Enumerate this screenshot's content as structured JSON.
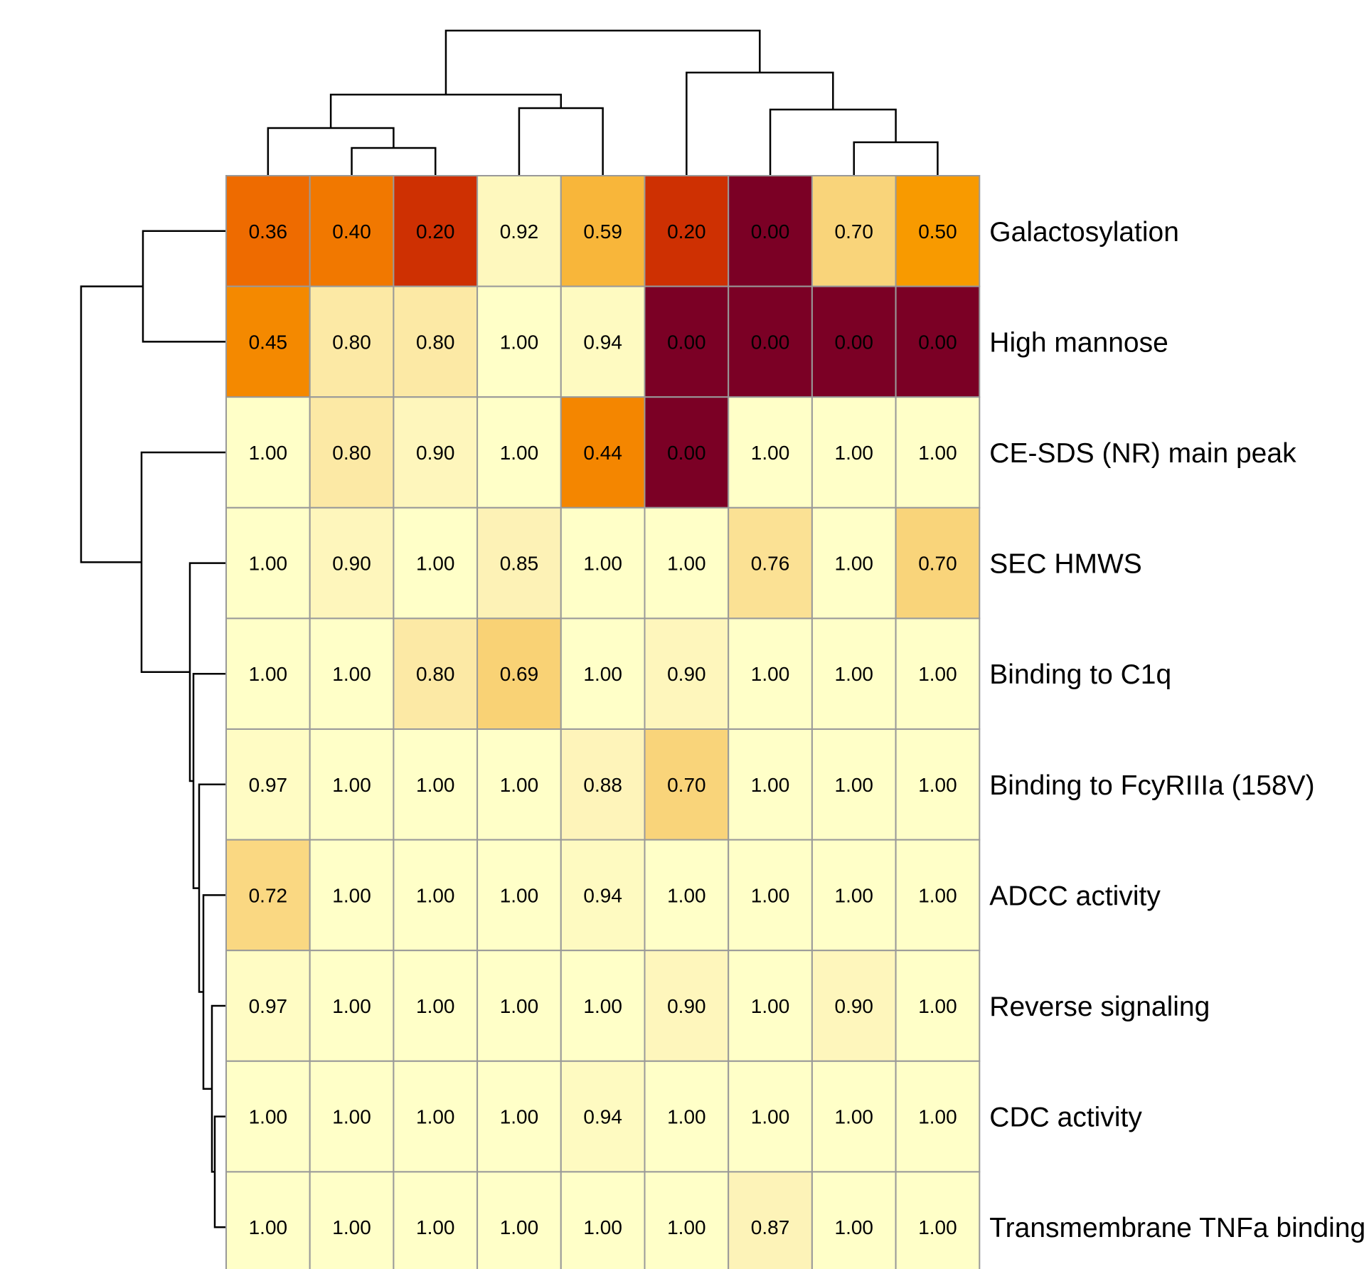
{
  "chart_data": {
    "type": "heatmap",
    "title": "",
    "rows": [
      "Galactosylation",
      "High mannose",
      "CE-SDS (NR) main peak",
      "SEC HMWS",
      "Binding to C1q",
      "Binding to FcyRIIIa (158V)",
      "ADCC activity",
      "Reverse signaling",
      "CDC activity",
      "Transmembrane TNFa binding"
    ],
    "columns": 9,
    "values": [
      [
        0.36,
        0.4,
        0.2,
        0.92,
        0.59,
        0.2,
        0.0,
        0.7,
        0.5
      ],
      [
        0.45,
        0.8,
        0.8,
        1.0,
        0.94,
        0.0,
        0.0,
        0.0,
        0.0
      ],
      [
        1.0,
        0.8,
        0.9,
        1.0,
        0.44,
        0.0,
        1.0,
        1.0,
        1.0
      ],
      [
        1.0,
        0.9,
        1.0,
        0.85,
        1.0,
        1.0,
        0.76,
        1.0,
        0.7
      ],
      [
        1.0,
        1.0,
        0.8,
        0.69,
        1.0,
        0.9,
        1.0,
        1.0,
        1.0
      ],
      [
        0.97,
        1.0,
        1.0,
        1.0,
        0.88,
        0.7,
        1.0,
        1.0,
        1.0
      ],
      [
        0.72,
        1.0,
        1.0,
        1.0,
        0.94,
        1.0,
        1.0,
        1.0,
        1.0
      ],
      [
        0.97,
        1.0,
        1.0,
        1.0,
        1.0,
        0.9,
        1.0,
        0.9,
        1.0
      ],
      [
        1.0,
        1.0,
        1.0,
        1.0,
        0.94,
        1.0,
        1.0,
        1.0,
        1.0
      ],
      [
        1.0,
        1.0,
        1.0,
        1.0,
        1.0,
        1.0,
        0.87,
        1.0,
        1.0
      ]
    ],
    "value_labels": [
      [
        "0.36",
        "0.40",
        "0.20",
        "0.92",
        "0.59",
        "0.20",
        "0.00",
        "0.70",
        "0.50"
      ],
      [
        "0.45",
        "0.80",
        "0.80",
        "1.00",
        "0.94",
        "0.00",
        "0.00",
        "0.00",
        "0.00"
      ],
      [
        "1.00",
        "0.80",
        "0.90",
        "1.00",
        "0.44",
        "0.00",
        "1.00",
        "1.00",
        "1.00"
      ],
      [
        "1.00",
        "0.90",
        "1.00",
        "0.85",
        "1.00",
        "1.00",
        "0.76",
        "1.00",
        "0.70"
      ],
      [
        "1.00",
        "1.00",
        "0.80",
        "0.69",
        "1.00",
        "0.90",
        "1.00",
        "1.00",
        "1.00"
      ],
      [
        "0.97",
        "1.00",
        "1.00",
        "1.00",
        "0.88",
        "0.70",
        "1.00",
        "1.00",
        "1.00"
      ],
      [
        "0.72",
        "1.00",
        "1.00",
        "1.00",
        "0.94",
        "1.00",
        "1.00",
        "1.00",
        "1.00"
      ],
      [
        "0.97",
        "1.00",
        "1.00",
        "1.00",
        "1.00",
        "0.90",
        "1.00",
        "0.90",
        "1.00"
      ],
      [
        "1.00",
        "1.00",
        "1.00",
        "1.00",
        "0.94",
        "1.00",
        "1.00",
        "1.00",
        "1.00"
      ],
      [
        "1.00",
        "1.00",
        "1.00",
        "1.00",
        "1.00",
        "1.00",
        "0.87",
        "1.00",
        "1.00"
      ]
    ],
    "color_scale": {
      "low": "#7b0025",
      "high": "#ffffc8",
      "stops": [
        "#7b0025",
        "#c72303",
        "#ec6200",
        "#f89a00",
        "#f8cd6b",
        "#fdf0b4",
        "#ffffc8"
      ]
    },
    "column_dendrogram": true,
    "row_dendrogram": true,
    "legend": "none",
    "grid": true
  }
}
